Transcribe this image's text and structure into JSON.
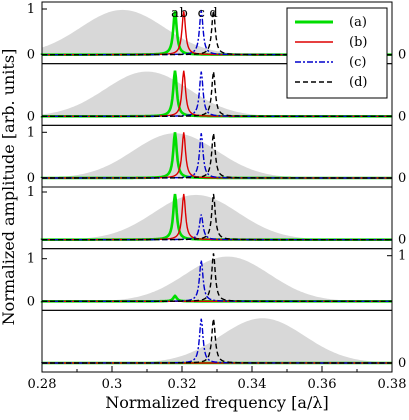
{
  "chart_data": {
    "type": "line",
    "xlabel": "Normalized frequency [a/λ]",
    "ylabel": "Normalized amplitude [arb. units]",
    "xlim": [
      0.28,
      0.38
    ],
    "x_ticks": [
      "0.28",
      "0.3",
      "0.32",
      "0.34",
      "0.36",
      "0.38"
    ],
    "peak_labels": [
      "a",
      "b",
      "c",
      "d"
    ],
    "legend": {
      "placement": "top-right",
      "entries": [
        {
          "label": "(a)",
          "color": "#00dd00",
          "style": "solid"
        },
        {
          "label": "(b)",
          "color": "#dd0000",
          "style": "solid"
        },
        {
          "label": "(c)",
          "color": "#0000cc",
          "style": "dash-dot"
        },
        {
          "label": "(d)",
          "color": "#000000",
          "style": "dashed"
        }
      ]
    },
    "source_fill_color": "#d8d8d8",
    "panels": [
      {
        "source_center": 0.303,
        "source_width": 0.012,
        "y_ticks_left": [
          "0",
          "1"
        ],
        "y_ticks_right": [
          "0"
        ],
        "series": [
          {
            "name": "(a)",
            "peak_x": 0.318,
            "peak_height": 0.95
          },
          {
            "name": "(b)",
            "peak_x": 0.3205,
            "peak_height": 0.95
          },
          {
            "name": "(c)",
            "peak_x": 0.3255,
            "peak_height": 0.98
          },
          {
            "name": "(d)",
            "peak_x": 0.329,
            "peak_height": 0.97
          }
        ]
      },
      {
        "source_center": 0.31,
        "source_width": 0.012,
        "y_ticks_left": [
          "0"
        ],
        "y_ticks_right": [
          "0"
        ],
        "series": [
          {
            "name": "(a)",
            "peak_x": 0.318,
            "peak_height": 1.0
          },
          {
            "name": "(b)",
            "peak_x": 0.3205,
            "peak_height": 1.0
          },
          {
            "name": "(c)",
            "peak_x": 0.3255,
            "peak_height": 0.98
          },
          {
            "name": "(d)",
            "peak_x": 0.329,
            "peak_height": 0.98
          }
        ]
      },
      {
        "source_center": 0.318,
        "source_width": 0.012,
        "y_ticks_left": [
          "0",
          "1"
        ],
        "y_ticks_right": [
          "0"
        ],
        "series": [
          {
            "name": "(a)",
            "peak_x": 0.318,
            "peak_height": 1.0
          },
          {
            "name": "(b)",
            "peak_x": 0.3205,
            "peak_height": 1.0
          },
          {
            "name": "(c)",
            "peak_x": 0.3255,
            "peak_height": 0.98
          },
          {
            "name": "(d)",
            "peak_x": 0.329,
            "peak_height": 0.98
          }
        ]
      },
      {
        "source_center": 0.324,
        "source_width": 0.012,
        "y_ticks_left": [
          "1"
        ],
        "y_ticks_right": [
          "0"
        ],
        "series": [
          {
            "name": "(a)",
            "peak_x": 0.318,
            "peak_height": 1.0
          },
          {
            "name": "(b)",
            "peak_x": 0.3205,
            "peak_height": 1.0
          },
          {
            "name": "(c)",
            "peak_x": 0.3255,
            "peak_height": 0.55
          },
          {
            "name": "(d)",
            "peak_x": 0.329,
            "peak_height": 1.0
          }
        ]
      },
      {
        "source_center": 0.333,
        "source_width": 0.012,
        "y_ticks_left": [
          "1",
          "0"
        ],
        "y_ticks_right": [
          "1"
        ],
        "series": [
          {
            "name": "(a)",
            "peak_x": 0.318,
            "peak_height": 0.12
          },
          {
            "name": "(b)",
            "peak_x": 0.3205,
            "peak_height": 0.0
          },
          {
            "name": "(c)",
            "peak_x": 0.3255,
            "peak_height": 0.9
          },
          {
            "name": "(d)",
            "peak_x": 0.329,
            "peak_height": 1.05
          }
        ]
      },
      {
        "source_center": 0.343,
        "source_width": 0.012,
        "y_ticks_left": [],
        "y_ticks_right": [
          "0"
        ],
        "series": [
          {
            "name": "(a)",
            "peak_x": 0.318,
            "peak_height": 0.0
          },
          {
            "name": "(b)",
            "peak_x": 0.3205,
            "peak_height": 0.0
          },
          {
            "name": "(c)",
            "peak_x": 0.3255,
            "peak_height": 0.97
          },
          {
            "name": "(d)",
            "peak_x": 0.329,
            "peak_height": 0.97
          }
        ]
      }
    ]
  }
}
